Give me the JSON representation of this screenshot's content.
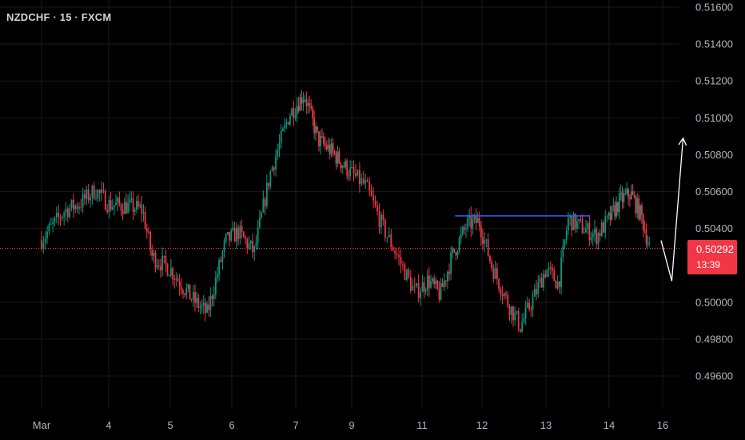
{
  "header": {
    "symbol": "NZDCHF · 15 · FXCM"
  },
  "last_price": {
    "value": "0.50292",
    "countdown": "13:39",
    "color": "#f23645"
  },
  "colors": {
    "up": "#089981",
    "down": "#f23645",
    "background": "#000000",
    "grid": "#1a1a1a",
    "horizontal_line": "#2962ff",
    "projection": "#ffffff",
    "axis_text": "#b2b5be"
  },
  "chart_data": {
    "type": "candlestick",
    "instrument": "NZDCHF",
    "timeframe": "15",
    "source": "FXCM",
    "ylim": [
      0.4944,
      0.517
    ],
    "y_ticks": [
      "0.51600",
      "0.51400",
      "0.51200",
      "0.51000",
      "0.50800",
      "0.50600",
      "0.50400",
      "0.50000",
      "0.49800",
      "0.49600"
    ],
    "x_ticks": [
      "Mar",
      "4",
      "5",
      "6",
      "7",
      "9",
      "11",
      "12",
      "13",
      "14",
      "16"
    ],
    "price_path": [
      {
        "x": 0.0,
        "y": 0.5034
      },
      {
        "x": 0.35,
        "y": 0.505
      },
      {
        "x": 0.55,
        "y": 0.5053
      },
      {
        "x": 0.8,
        "y": 0.5061
      },
      {
        "x": 1.0,
        "y": 0.5053
      },
      {
        "x": 1.35,
        "y": 0.5052
      },
      {
        "x": 1.55,
        "y": 0.505
      },
      {
        "x": 1.7,
        "y": 0.5025
      },
      {
        "x": 2.0,
        "y": 0.5018
      },
      {
        "x": 2.35,
        "y": 0.5002
      },
      {
        "x": 2.6,
        "y": 0.4994
      },
      {
        "x": 2.9,
        "y": 0.5033
      },
      {
        "x": 3.1,
        "y": 0.5038
      },
      {
        "x": 3.35,
        "y": 0.5027
      },
      {
        "x": 3.6,
        "y": 0.507
      },
      {
        "x": 3.9,
        "y": 0.5102
      },
      {
        "x": 4.15,
        "y": 0.5113
      },
      {
        "x": 4.4,
        "y": 0.5088
      },
      {
        "x": 4.6,
        "y": 0.5083
      },
      {
        "x": 4.9,
        "y": 0.5073
      },
      {
        "x": 5.2,
        "y": 0.5063
      },
      {
        "x": 5.45,
        "y": 0.504
      },
      {
        "x": 5.65,
        "y": 0.5025
      },
      {
        "x": 5.9,
        "y": 0.5005
      },
      {
        "x": 6.1,
        "y": 0.5012
      },
      {
        "x": 6.3,
        "y": 0.5004
      },
      {
        "x": 6.5,
        "y": 0.5025
      },
      {
        "x": 6.75,
        "y": 0.5042
      },
      {
        "x": 6.95,
        "y": 0.5044
      },
      {
        "x": 7.15,
        "y": 0.502
      },
      {
        "x": 7.4,
        "y": 0.5
      },
      {
        "x": 7.6,
        "y": 0.4987
      },
      {
        "x": 7.8,
        "y": 0.5002
      },
      {
        "x": 8.0,
        "y": 0.5018
      },
      {
        "x": 8.2,
        "y": 0.501
      },
      {
        "x": 8.35,
        "y": 0.5045
      },
      {
        "x": 8.55,
        "y": 0.5041
      },
      {
        "x": 8.8,
        "y": 0.5036
      },
      {
        "x": 9.0,
        "y": 0.5045
      },
      {
        "x": 9.2,
        "y": 0.5055
      },
      {
        "x": 9.4,
        "y": 0.5059
      },
      {
        "x": 9.6,
        "y": 0.5047
      },
      {
        "x": 9.75,
        "y": 0.503
      }
    ],
    "horizontal_line": {
      "y": 0.50468,
      "x_start": 6.55,
      "x_end": 8.7
    },
    "last_price_line": 0.50292,
    "projection": [
      {
        "x": 9.97,
        "y": 0.50335
      },
      {
        "x": 10.17,
        "y": 0.50115
      },
      {
        "x": 10.38,
        "y": 0.5089
      }
    ]
  }
}
